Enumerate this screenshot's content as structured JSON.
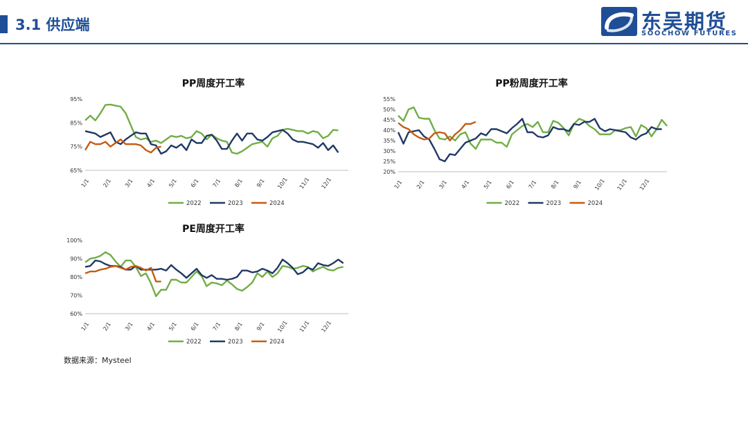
{
  "header": {
    "section_title": "3.1 供应端",
    "brand_cn": "东吴期货",
    "brand_en": "SOOCHOW FUTURES",
    "accent_color": "#1f4e96",
    "title_color": "#1f4e96"
  },
  "footer": {
    "source": "数据来源：Mysteel"
  },
  "colors": {
    "2022": "#70ad47",
    "2023": "#203864",
    "2024": "#c55a11"
  },
  "chart_data": [
    {
      "type": "line",
      "title": "PP周度开工率",
      "x_ticks": [
        "1/1",
        "2/1",
        "3/1",
        "4/1",
        "5/1",
        "6/1",
        "7/1",
        "8/1",
        "9/1",
        "10/1",
        "11/1",
        "12/1"
      ],
      "y_ticks": [
        "65%",
        "75%",
        "85%",
        "95%"
      ],
      "ylim": [
        65,
        95
      ],
      "xlim": [
        0,
        52
      ],
      "legend": "bottom",
      "series": [
        {
          "name": "2022",
          "values": [
            86,
            88,
            86,
            89,
            92.5,
            92.7,
            92.2,
            91.8,
            89,
            84,
            79,
            78,
            78.5,
            77,
            77.5,
            76.5,
            78,
            79.5,
            79,
            79.5,
            78.5,
            79,
            81.5,
            80.5,
            78,
            80,
            78.5,
            77.5,
            77,
            72.5,
            72,
            73,
            74.5,
            76,
            76.5,
            77,
            75,
            78.5,
            79.5,
            82,
            82.5,
            82,
            81.5,
            81.5,
            80.5,
            81.5,
            81,
            78.5,
            79.5,
            82,
            81.8
          ]
        },
        {
          "name": "2023",
          "values": [
            81.5,
            81,
            80.5,
            79,
            80,
            81,
            77,
            76,
            78,
            79.5,
            81,
            80.5,
            80.5,
            76,
            75.5,
            72,
            73,
            75.5,
            74.5,
            76,
            73.5,
            78,
            76.5,
            76.5,
            79.5,
            80,
            77.5,
            74,
            74,
            77.5,
            80.5,
            77.5,
            80.5,
            80.5,
            78,
            77.5,
            79,
            81,
            81.5,
            82,
            80.5,
            78,
            77,
            77,
            76.5,
            76,
            74.5,
            76.5,
            73.5,
            75.5,
            72.5
          ]
        },
        {
          "name": "2024",
          "values": [
            73.5,
            77,
            76,
            76,
            77,
            75,
            76.5,
            78,
            76,
            76,
            76,
            75.5,
            73.5,
            72.5,
            74.5,
            75
          ]
        }
      ]
    },
    {
      "type": "line",
      "title": "PP粉周度开工率",
      "x_ticks": [
        "1/1",
        "2/1",
        "3/1",
        "4/1",
        "5/1",
        "6/1",
        "7/1",
        "8/1",
        "9/1",
        "10/1",
        "11/1",
        "12/1"
      ],
      "y_ticks": [
        "20%",
        "25%",
        "30%",
        "35%",
        "40%",
        "45%",
        "50%",
        "55%"
      ],
      "ylim": [
        20,
        55
      ],
      "xlim": [
        0,
        52
      ],
      "legend": "bottom",
      "series": [
        {
          "name": "2022",
          "values": [
            47,
            44.5,
            50,
            51,
            46,
            45.5,
            45.5,
            40,
            36,
            35.5,
            37,
            35,
            38,
            39,
            33.5,
            31,
            35.5,
            35.5,
            35.5,
            34,
            34,
            32,
            38,
            40,
            42,
            43,
            41.5,
            44,
            39,
            39,
            44.5,
            43.5,
            41,
            37.5,
            43,
            45.5,
            44.5,
            42,
            40.5,
            38,
            38,
            38,
            40,
            40,
            41,
            41.5,
            37,
            42.5,
            41,
            37,
            40.5,
            45,
            42
          ]
        },
        {
          "name": "2023",
          "values": [
            39,
            33.5,
            39,
            39.5,
            40,
            37,
            35.5,
            31,
            26,
            25,
            28.5,
            28,
            31,
            34,
            35,
            36,
            38.5,
            37.5,
            40.5,
            40.5,
            39.5,
            38.5,
            41,
            43,
            45.5,
            39,
            39,
            37,
            36.5,
            37.5,
            41.5,
            40.5,
            40.5,
            39.5,
            43,
            42.5,
            44,
            44,
            45.5,
            41,
            39.5,
            40.5,
            40,
            39.5,
            39,
            36.5,
            35.5,
            37.5,
            38.5,
            41.5,
            40.5,
            40.5
          ]
        },
        {
          "name": "2024",
          "values": [
            43.5,
            41.5,
            40.5,
            38,
            36.5,
            35.5,
            36,
            38.5,
            39,
            38.5,
            35,
            38,
            40,
            43,
            43,
            44
          ]
        }
      ]
    },
    {
      "type": "line",
      "title": "PE周度开工率",
      "x_ticks": [
        "1/1",
        "2/1",
        "3/1",
        "4/1",
        "5/1",
        "6/1",
        "7/1",
        "8/1",
        "9/1",
        "10/1",
        "11/1",
        "12/1"
      ],
      "y_ticks": [
        "60%",
        "70%",
        "80%",
        "90%",
        "100%"
      ],
      "ylim": [
        60,
        100
      ],
      "xlim": [
        0,
        52
      ],
      "legend": "bottom",
      "series": [
        {
          "name": "2022",
          "values": [
            88,
            90,
            90.5,
            91.5,
            93.5,
            92,
            88.5,
            85.5,
            89,
            89,
            85.5,
            80.5,
            82,
            76.5,
            69.5,
            73,
            73,
            78.5,
            78.5,
            77,
            77,
            80,
            83,
            80.5,
            75,
            77,
            76.5,
            75.5,
            78,
            76,
            73.5,
            72.5,
            74.5,
            77,
            82,
            80,
            83,
            80,
            82,
            86,
            85.5,
            84.5,
            85,
            86,
            85.5,
            83,
            84.5,
            85.5,
            84,
            83.5,
            85,
            85.5
          ]
        },
        {
          "name": "2023",
          "values": [
            85.5,
            86,
            89,
            88.5,
            87,
            86,
            86,
            85.5,
            84,
            84,
            86,
            84,
            84,
            84,
            84,
            84.5,
            83.5,
            86.5,
            84,
            82,
            79.5,
            82,
            84.5,
            81,
            79.5,
            81,
            79,
            79,
            78.5,
            79,
            80,
            83.5,
            83.5,
            82.5,
            83,
            84.5,
            83.5,
            82,
            85,
            89.5,
            87.5,
            85,
            81.5,
            82.5,
            85,
            84,
            87.5,
            86.5,
            86,
            87.5,
            89.5,
            87.5
          ]
        },
        {
          "name": "2024",
          "values": [
            82,
            83,
            83,
            84,
            84.5,
            85.5,
            86,
            85,
            84,
            85.5,
            86,
            85,
            83.5,
            85,
            77.5,
            77.5
          ]
        }
      ]
    }
  ]
}
